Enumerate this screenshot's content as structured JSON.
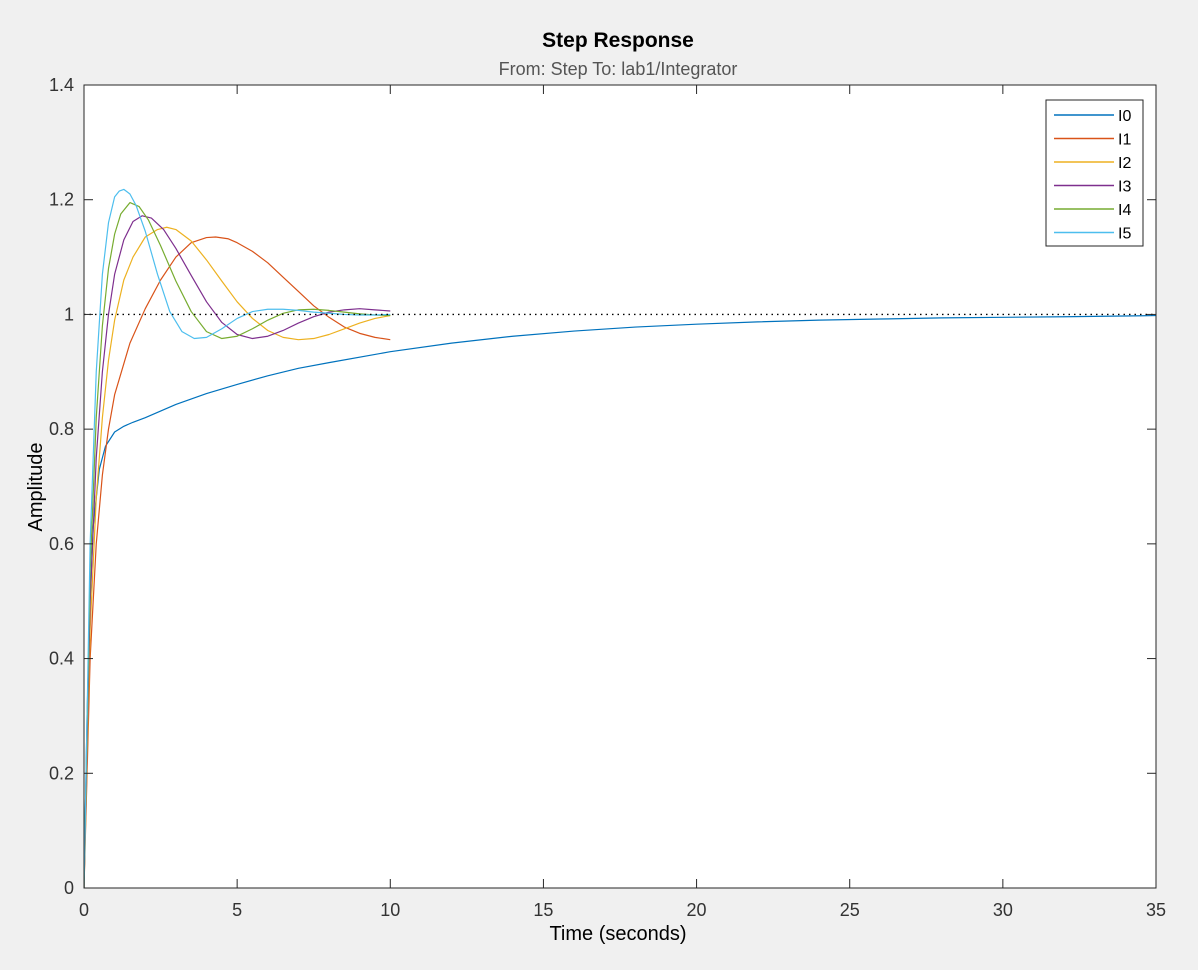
{
  "chart_data": {
    "type": "line",
    "title": "Step Response",
    "subtitle": "From: Step  To: lab1/Integrator",
    "xlabel": "Time (seconds)",
    "ylabel": "Amplitude",
    "xlim": [
      0,
      35
    ],
    "ylim": [
      0,
      1.4
    ],
    "xticks": [
      0,
      5,
      10,
      15,
      20,
      25,
      30,
      35
    ],
    "yticks": [
      0,
      0.2,
      0.4,
      0.6,
      0.8,
      1,
      1.2,
      1.4
    ],
    "xtick_labels": [
      "0",
      "5",
      "10",
      "15",
      "20",
      "25",
      "30",
      "35"
    ],
    "ytick_labels": [
      "0",
      "0.2",
      "0.4",
      "0.6",
      "0.8",
      "1",
      "1.2",
      "1.4"
    ],
    "grid": false,
    "legend_position": "top-right",
    "reference_line": {
      "y": 1,
      "style": "dotted",
      "color": "#000000"
    },
    "series": [
      {
        "name": "I0",
        "color": "#0072BD",
        "x": [
          0,
          0.1,
          0.2,
          0.3,
          0.5,
          0.7,
          1,
          1.3,
          1.6,
          2,
          3,
          4,
          5,
          6,
          7,
          8,
          10,
          12,
          14,
          16,
          18,
          20,
          22,
          24,
          26,
          28,
          30,
          32,
          35
        ],
        "y": [
          0,
          0.3,
          0.5,
          0.63,
          0.73,
          0.77,
          0.795,
          0.805,
          0.812,
          0.82,
          0.843,
          0.862,
          0.878,
          0.893,
          0.906,
          0.916,
          0.935,
          0.95,
          0.962,
          0.971,
          0.978,
          0.983,
          0.987,
          0.99,
          0.992,
          0.994,
          0.995,
          0.996,
          0.998
        ]
      },
      {
        "name": "I1",
        "color": "#D95319",
        "x": [
          0,
          0.2,
          0.4,
          0.6,
          0.8,
          1,
          1.5,
          2,
          2.5,
          3,
          3.5,
          4,
          4.3,
          4.7,
          5,
          5.5,
          6,
          6.5,
          7,
          7.5,
          8,
          8.5,
          9,
          9.5,
          10
        ],
        "y": [
          0,
          0.4,
          0.6,
          0.72,
          0.8,
          0.86,
          0.95,
          1.01,
          1.06,
          1.1,
          1.125,
          1.134,
          1.135,
          1.132,
          1.125,
          1.11,
          1.09,
          1.065,
          1.04,
          1.015,
          0.995,
          0.978,
          0.967,
          0.96,
          0.956
        ]
      },
      {
        "name": "I2",
        "color": "#EDB120",
        "x": [
          0,
          0.2,
          0.4,
          0.6,
          0.8,
          1,
          1.3,
          1.6,
          2,
          2.4,
          2.7,
          3,
          3.5,
          4,
          4.5,
          5,
          5.5,
          6,
          6.5,
          7,
          7.5,
          8,
          8.5,
          9,
          9.5,
          10
        ],
        "y": [
          0,
          0.45,
          0.68,
          0.82,
          0.92,
          0.99,
          1.06,
          1.1,
          1.135,
          1.148,
          1.152,
          1.148,
          1.128,
          1.095,
          1.058,
          1.022,
          0.993,
          0.972,
          0.96,
          0.956,
          0.958,
          0.965,
          0.975,
          0.985,
          0.993,
          0.998
        ]
      },
      {
        "name": "I3",
        "color": "#7E2F8E",
        "x": [
          0,
          0.2,
          0.4,
          0.6,
          0.8,
          1,
          1.3,
          1.6,
          1.9,
          2.2,
          2.6,
          3,
          3.5,
          4,
          4.5,
          5,
          5.5,
          6,
          6.5,
          7,
          7.5,
          8,
          8.5,
          9,
          9.5,
          10
        ],
        "y": [
          0,
          0.5,
          0.75,
          0.9,
          1.0,
          1.07,
          1.13,
          1.162,
          1.172,
          1.168,
          1.148,
          1.115,
          1.068,
          1.022,
          0.986,
          0.965,
          0.958,
          0.962,
          0.972,
          0.985,
          0.996,
          1.004,
          1.008,
          1.01,
          1.008,
          1.006
        ]
      },
      {
        "name": "I4",
        "color": "#77AC30",
        "x": [
          0,
          0.2,
          0.4,
          0.6,
          0.8,
          1,
          1.2,
          1.5,
          1.8,
          2.1,
          2.5,
          3,
          3.5,
          4,
          4.5,
          5,
          5.5,
          6,
          6.5,
          7,
          7.5,
          8,
          8.5,
          9,
          9.5,
          10
        ],
        "y": [
          0,
          0.55,
          0.82,
          0.98,
          1.08,
          1.14,
          1.175,
          1.195,
          1.188,
          1.165,
          1.12,
          1.058,
          1.005,
          0.97,
          0.958,
          0.962,
          0.975,
          0.99,
          1.002,
          1.008,
          1.009,
          1.007,
          1.004,
          1.001,
          0.999,
          0.998
        ]
      },
      {
        "name": "I5",
        "color": "#4DBEEE",
        "x": [
          0,
          0.2,
          0.4,
          0.6,
          0.8,
          1,
          1.15,
          1.3,
          1.5,
          1.7,
          2,
          2.4,
          2.8,
          3.2,
          3.6,
          4,
          4.5,
          5,
          5.5,
          6,
          6.5,
          7,
          7.5,
          8,
          8.5,
          9,
          9.5,
          10
        ],
        "y": [
          0,
          0.6,
          0.9,
          1.07,
          1.16,
          1.205,
          1.215,
          1.218,
          1.21,
          1.19,
          1.145,
          1.07,
          1.005,
          0.97,
          0.958,
          0.96,
          0.975,
          0.993,
          1.005,
          1.009,
          1.009,
          1.007,
          1.004,
          1.002,
          1.0,
          0.999,
          0.999,
          1.0
        ]
      }
    ]
  }
}
